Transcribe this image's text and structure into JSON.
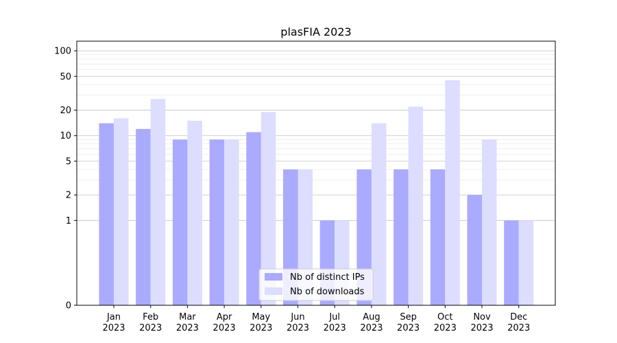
{
  "chart_data": {
    "type": "bar",
    "title": "plasFIA 2023",
    "xlabel": "",
    "ylabel": "",
    "yscale": "symlog",
    "ylim": [
      0,
      130
    ],
    "yticks": [
      0,
      1,
      2,
      5,
      10,
      20,
      50,
      100
    ],
    "ytick_labels": [
      "0",
      "1",
      "2",
      "5",
      "10",
      "20",
      "50",
      "100"
    ],
    "grid": true,
    "legend_position": "bottom-center",
    "categories": [
      {
        "month": "Jan",
        "year": "2023"
      },
      {
        "month": "Feb",
        "year": "2023"
      },
      {
        "month": "Mar",
        "year": "2023"
      },
      {
        "month": "Apr",
        "year": "2023"
      },
      {
        "month": "May",
        "year": "2023"
      },
      {
        "month": "Jun",
        "year": "2023"
      },
      {
        "month": "Jul",
        "year": "2023"
      },
      {
        "month": "Aug",
        "year": "2023"
      },
      {
        "month": "Sep",
        "year": "2023"
      },
      {
        "month": "Oct",
        "year": "2023"
      },
      {
        "month": "Nov",
        "year": "2023"
      },
      {
        "month": "Dec",
        "year": "2023"
      }
    ],
    "series": [
      {
        "name": "Nb of distinct IPs",
        "color": "#aaaaff",
        "values": [
          14,
          12,
          9,
          9,
          11,
          4,
          1,
          4,
          4,
          4,
          2,
          1
        ]
      },
      {
        "name": "Nb of downloads",
        "color": "#ddddff",
        "values": [
          16,
          27,
          15,
          9,
          19,
          4,
          1,
          14,
          22,
          45,
          9,
          1
        ]
      }
    ]
  }
}
